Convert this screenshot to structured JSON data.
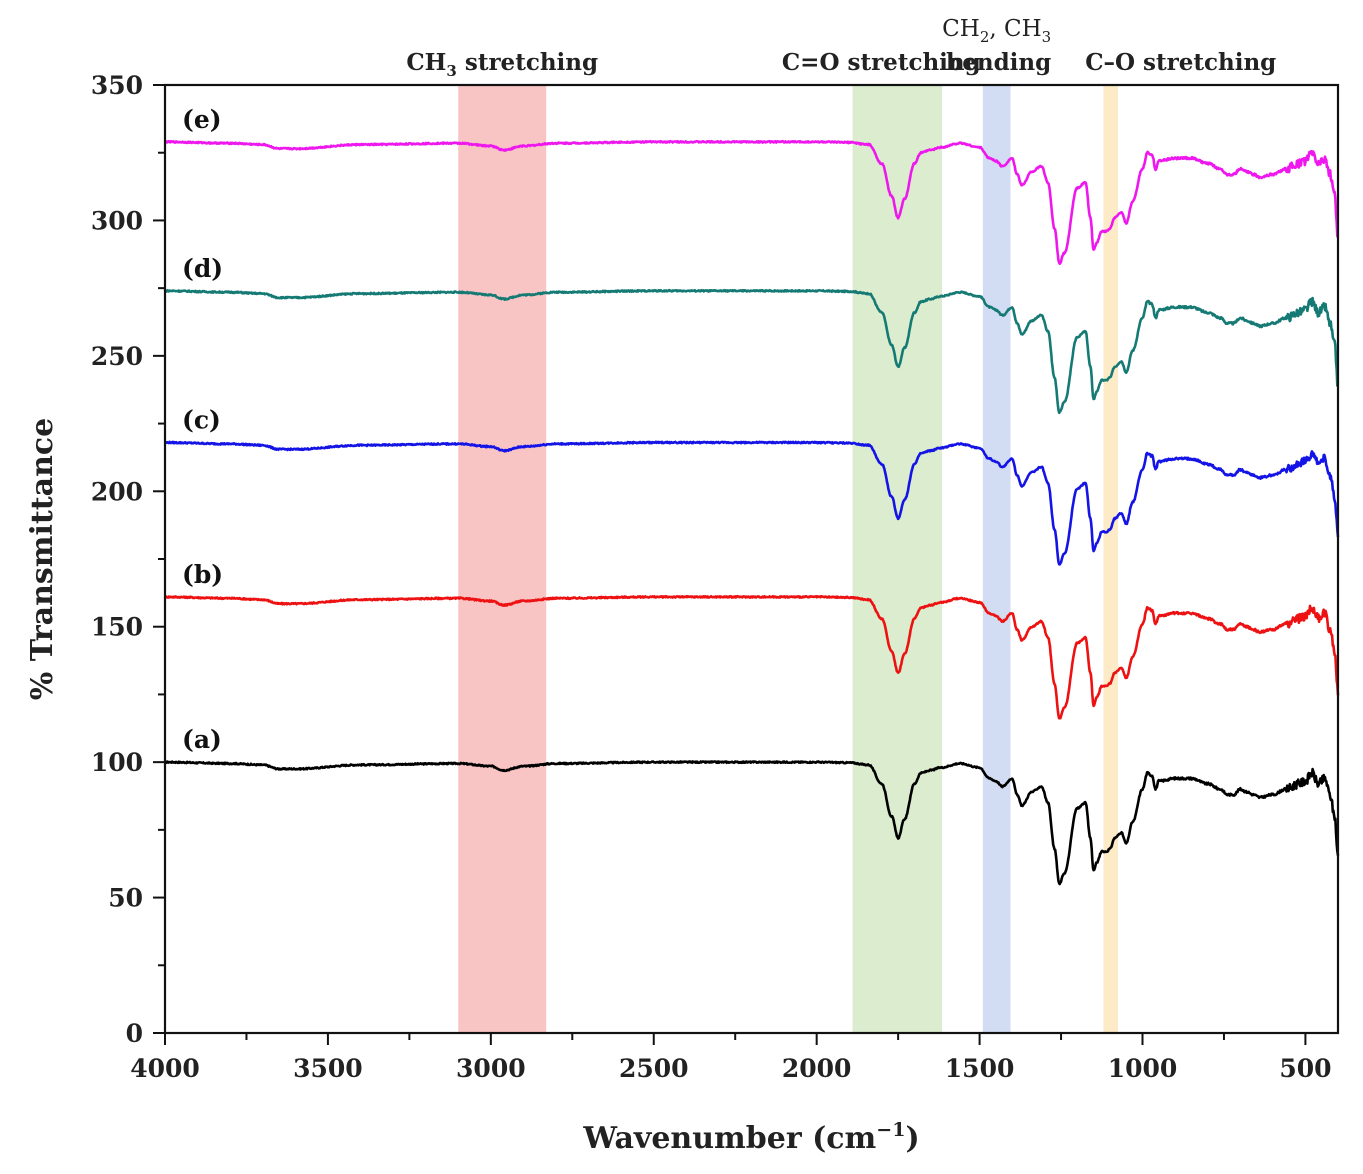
{
  "chart_data": {
    "type": "line",
    "xlabel": "Wavenumber (cm",
    "xlabel_exp": "−1",
    "xlabel_close": ")",
    "ylabel": "% Transmittance",
    "xlim": [
      4000,
      400
    ],
    "ylim": [
      0,
      350
    ],
    "x_ticks": [
      4000,
      3500,
      3000,
      2500,
      2000,
      1500,
      1000,
      500
    ],
    "y_ticks": [
      0,
      50,
      100,
      150,
      200,
      250,
      300,
      350
    ],
    "regions": [
      {
        "name": "ch3-stretching",
        "from": 3100,
        "to": 2830,
        "color": "#f9c4c4",
        "label_main": "CH",
        "label_sub": "3",
        "label_tail": " stretching"
      },
      {
        "name": "co-double-stretching",
        "from": 1890,
        "to": 1615,
        "color": "#dbeccf",
        "label_main": "C=O stretching"
      },
      {
        "name": "ch2-ch3-bending",
        "from": 1490,
        "to": 1405,
        "color": "#d2dcf3",
        "label_line1_a": "CH",
        "label_line1_sub_a": "2",
        "label_line1_b": ", CH",
        "label_line1_sub_b": "3",
        "label_line2": "bending"
      },
      {
        "name": "co-single-stretching",
        "from": 1120,
        "to": 1075,
        "color": "#fcebc6",
        "label_main": "C–O stretching"
      }
    ],
    "series": [
      {
        "name": "(a)",
        "color": "#000000",
        "offset": 0
      },
      {
        "name": "(b)",
        "color": "#ee1111",
        "offset": 61
      },
      {
        "name": "(c)",
        "color": "#1414e6",
        "offset": 118
      },
      {
        "name": "(d)",
        "color": "#157a74",
        "offset": 174
      },
      {
        "name": "(e)",
        "color": "#ee18ee",
        "offset": 229
      }
    ],
    "base_spectrum": {
      "x": [
        4000,
        3800,
        3700,
        3650,
        3600,
        3400,
        3100,
        3000,
        2960,
        2900,
        2800,
        2500,
        2200,
        2000,
        1900,
        1840,
        1800,
        1770,
        1750,
        1730,
        1700,
        1680,
        1650,
        1620,
        1560,
        1500,
        1470,
        1450,
        1430,
        1400,
        1385,
        1370,
        1340,
        1310,
        1290,
        1270,
        1255,
        1240,
        1200,
        1175,
        1160,
        1150,
        1140,
        1125,
        1110,
        1100,
        1085,
        1065,
        1050,
        1030,
        1000,
        985,
        970,
        960,
        950,
        900,
        850,
        800,
        760,
        740,
        720,
        700,
        680,
        660,
        640,
        600,
        560,
        520,
        500,
        480,
        460,
        440,
        425,
        410,
        400
      ],
      "y": [
        100,
        99.5,
        99,
        97.5,
        97.5,
        99,
        99.5,
        98.5,
        97,
        98.5,
        99.5,
        100,
        100,
        100,
        99.8,
        99,
        92,
        80,
        72,
        79,
        92,
        96,
        97,
        98,
        99.5,
        98,
        94,
        93,
        91,
        94,
        88,
        84,
        89,
        91,
        85,
        68,
        55,
        59,
        83,
        85,
        72,
        60,
        63,
        67,
        67,
        68,
        72,
        74,
        70,
        78,
        90,
        96,
        95,
        90,
        93,
        94,
        94,
        92,
        90,
        88,
        88,
        90,
        89,
        88,
        87,
        88,
        90,
        92,
        93,
        96,
        92,
        94,
        88,
        80,
        65
      ]
    }
  }
}
